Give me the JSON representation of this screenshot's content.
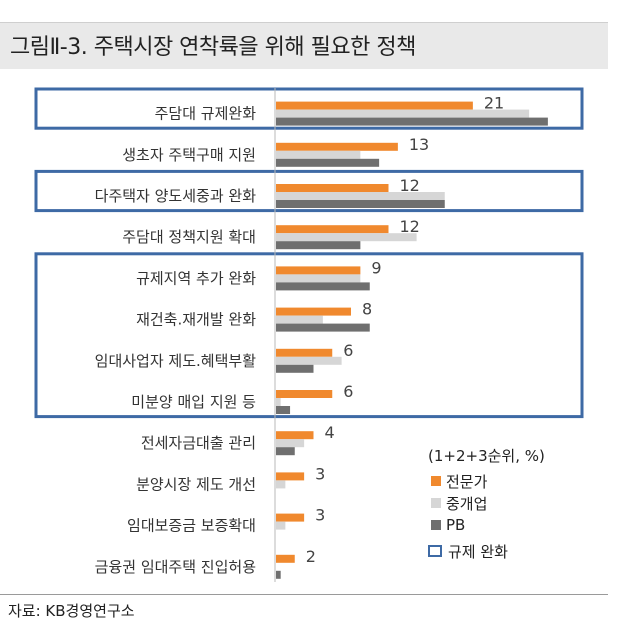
{
  "title": "그림Ⅱ-3. 주택시장 연착륙을 위해 필요한 정책",
  "source": "자료: KB경영연구소",
  "colors": {
    "expert": "#f0892e",
    "broker": "#d6d6d6",
    "pb": "#6f6f6f",
    "highlight": "#3e6aa5"
  },
  "legend": {
    "note": "(1+2+3순위, %)",
    "expert": "전문가",
    "broker": "중개업",
    "pb": "PB",
    "highlight": "규제 완화"
  },
  "chart_data": {
    "type": "bar",
    "orientation": "horizontal",
    "unit": "%",
    "categories": [
      "주담대 규제완화",
      "생초자 주택구매 지원",
      "다주택자 양도세중과 완화",
      "주담대 정책지원 확대",
      "규제지역 추가 완화",
      "재건축.재개발 완화",
      "임대사업자 제도.혜택부활",
      "미분양 매입 지원 등",
      "전세자금대출 관리",
      "분양시장 제도 개선",
      "임대보증금 보증확대",
      "금융권 임대주택 진입허용"
    ],
    "series": [
      {
        "name": "전문가",
        "values": [
          21,
          13,
          12,
          12,
          9,
          8,
          6,
          6,
          4,
          3,
          3,
          2
        ]
      },
      {
        "name": "중개업",
        "values": [
          27,
          9,
          18,
          15,
          9,
          5,
          7,
          0.5,
          3,
          1,
          1,
          0
        ]
      },
      {
        "name": "PB",
        "values": [
          29,
          11,
          18,
          9,
          10,
          10,
          4,
          1.5,
          2,
          0,
          0,
          0.5
        ]
      }
    ],
    "data_labels": [
      21,
      13,
      12,
      12,
      9,
      8,
      6,
      6,
      4,
      3,
      3,
      2
    ],
    "highlight_groups": [
      [
        0
      ],
      [
        2
      ],
      [
        4,
        5,
        6,
        7
      ]
    ],
    "highlight_label": "규제 완화",
    "xlim": [
      0,
      32
    ],
    "grid": false,
    "legend_position": "bottom-right"
  }
}
